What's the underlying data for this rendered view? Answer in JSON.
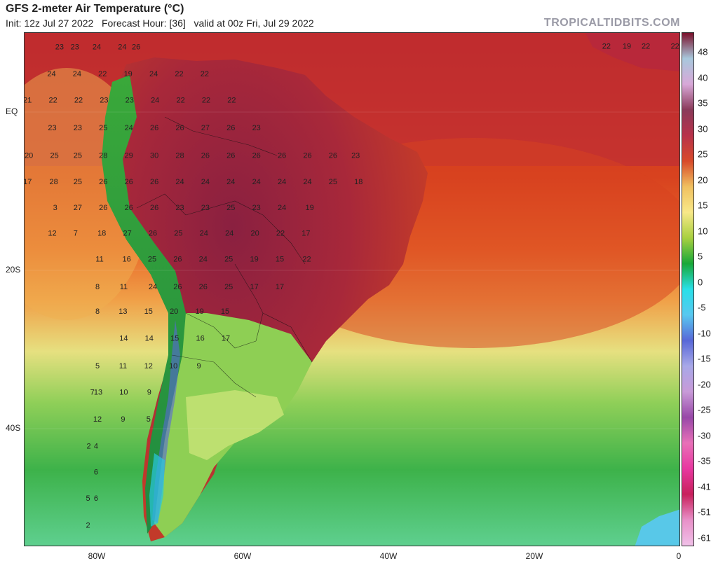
{
  "header": {
    "title": "GFS 2-meter Air Temperature (°C)",
    "subtitle": "Init: 12z Jul 27 2022   Forecast Hour: [36]   valid at 00z Fri, Jul 29 2022",
    "brand": "TROPICALTIDBITS.COM"
  },
  "map": {
    "lat_labels": [
      "EQ",
      "20S",
      "40S"
    ],
    "lon_labels": [
      "80W",
      "60W",
      "40W",
      "20W",
      "0"
    ],
    "temperatures": [
      {
        "t": "23",
        "lon": -85.2,
        "lat": 7.9
      },
      {
        "t": "23",
        "lon": -83.1,
        "lat": 7.9
      },
      {
        "t": "24",
        "lon": -80.1,
        "lat": 7.9
      },
      {
        "t": "24",
        "lon": -76.6,
        "lat": 7.9
      },
      {
        "t": "26",
        "lon": -74.7,
        "lat": 7.9
      },
      {
        "t": "24",
        "lon": -86.3,
        "lat": 4.5
      },
      {
        "t": "24",
        "lon": -82.8,
        "lat": 4.5
      },
      {
        "t": "22",
        "lon": -79.3,
        "lat": 4.5
      },
      {
        "t": "19",
        "lon": -75.8,
        "lat": 4.5
      },
      {
        "t": "24",
        "lon": -72.3,
        "lat": 4.5
      },
      {
        "t": "22",
        "lon": -68.8,
        "lat": 4.5
      },
      {
        "t": "22",
        "lon": -65.3,
        "lat": 4.5
      },
      {
        "t": "21",
        "lon": -89.6,
        "lat": 1.2
      },
      {
        "t": "22",
        "lon": -86.1,
        "lat": 1.2
      },
      {
        "t": "22",
        "lon": -82.6,
        "lat": 1.2
      },
      {
        "t": "23",
        "lon": -79.1,
        "lat": 1.2
      },
      {
        "t": "23",
        "lon": -75.6,
        "lat": 1.2
      },
      {
        "t": "24",
        "lon": -72.1,
        "lat": 1.2
      },
      {
        "t": "22",
        "lon": -68.6,
        "lat": 1.2
      },
      {
        "t": "22",
        "lon": -65.1,
        "lat": 1.2
      },
      {
        "t": "22",
        "lon": -61.6,
        "lat": 1.2
      },
      {
        "t": "23",
        "lon": -86.2,
        "lat": -2.3
      },
      {
        "t": "23",
        "lon": -82.7,
        "lat": -2.3
      },
      {
        "t": "25",
        "lon": -79.2,
        "lat": -2.3
      },
      {
        "t": "24",
        "lon": -75.7,
        "lat": -2.3
      },
      {
        "t": "26",
        "lon": -72.2,
        "lat": -2.3
      },
      {
        "t": "26",
        "lon": -68.7,
        "lat": -2.3
      },
      {
        "t": "27",
        "lon": -65.2,
        "lat": -2.3
      },
      {
        "t": "26",
        "lon": -61.7,
        "lat": -2.3
      },
      {
        "t": "23",
        "lon": -58.2,
        "lat": -2.3
      },
      {
        "t": "20",
        "lon": -89.4,
        "lat": -5.8
      },
      {
        "t": "25",
        "lon": -85.9,
        "lat": -5.8
      },
      {
        "t": "25",
        "lon": -82.7,
        "lat": -5.8
      },
      {
        "t": "28",
        "lon": -79.2,
        "lat": -5.8
      },
      {
        "t": "29",
        "lon": -75.7,
        "lat": -5.8
      },
      {
        "t": "30",
        "lon": -72.2,
        "lat": -5.8
      },
      {
        "t": "28",
        "lon": -68.7,
        "lat": -5.8
      },
      {
        "t": "26",
        "lon": -65.2,
        "lat": -5.8
      },
      {
        "t": "26",
        "lon": -61.7,
        "lat": -5.8
      },
      {
        "t": "26",
        "lon": -58.2,
        "lat": -5.8
      },
      {
        "t": "26",
        "lon": -54.7,
        "lat": -5.8
      },
      {
        "t": "26",
        "lon": -51.2,
        "lat": -5.8
      },
      {
        "t": "26",
        "lon": -47.7,
        "lat": -5.8
      },
      {
        "t": "23",
        "lon": -44.6,
        "lat": -5.8
      },
      {
        "t": "17",
        "lon": -89.6,
        "lat": -9.1
      },
      {
        "t": "28",
        "lon": -86.0,
        "lat": -9.1
      },
      {
        "t": "25",
        "lon": -82.7,
        "lat": -9.1
      },
      {
        "t": "26",
        "lon": -79.2,
        "lat": -9.1
      },
      {
        "t": "26",
        "lon": -75.7,
        "lat": -9.1
      },
      {
        "t": "26",
        "lon": -72.2,
        "lat": -9.1
      },
      {
        "t": "24",
        "lon": -68.7,
        "lat": -9.1
      },
      {
        "t": "24",
        "lon": -65.2,
        "lat": -9.1
      },
      {
        "t": "24",
        "lon": -61.7,
        "lat": -9.1
      },
      {
        "t": "24",
        "lon": -58.2,
        "lat": -9.1
      },
      {
        "t": "24",
        "lon": -54.7,
        "lat": -9.1
      },
      {
        "t": "24",
        "lon": -51.2,
        "lat": -9.1
      },
      {
        "t": "25",
        "lon": -47.7,
        "lat": -9.1
      },
      {
        "t": "18",
        "lon": -44.2,
        "lat": -9.1
      },
      {
        "t": "3",
        "lon": -85.8,
        "lat": -12.4
      },
      {
        "t": "27",
        "lon": -82.7,
        "lat": -12.4
      },
      {
        "t": "26",
        "lon": -79.2,
        "lat": -12.4
      },
      {
        "t": "26",
        "lon": -75.7,
        "lat": -12.4
      },
      {
        "t": "26",
        "lon": -72.2,
        "lat": -12.4
      },
      {
        "t": "23",
        "lon": -68.7,
        "lat": -12.4
      },
      {
        "t": "23",
        "lon": -65.2,
        "lat": -12.4
      },
      {
        "t": "25",
        "lon": -61.7,
        "lat": -12.4
      },
      {
        "t": "23",
        "lon": -58.2,
        "lat": -12.4
      },
      {
        "t": "24",
        "lon": -54.7,
        "lat": -12.4
      },
      {
        "t": "19",
        "lon": -50.9,
        "lat": -12.4
      },
      {
        "t": "12",
        "lon": -86.2,
        "lat": -15.6
      },
      {
        "t": "7",
        "lon": -83.0,
        "lat": -15.6
      },
      {
        "t": "18",
        "lon": -79.4,
        "lat": -15.6
      },
      {
        "t": "27",
        "lon": -75.9,
        "lat": -15.6
      },
      {
        "t": "26",
        "lon": -72.4,
        "lat": -15.6
      },
      {
        "t": "25",
        "lon": -68.9,
        "lat": -15.6
      },
      {
        "t": "24",
        "lon": -65.4,
        "lat": -15.6
      },
      {
        "t": "24",
        "lon": -61.9,
        "lat": -15.6
      },
      {
        "t": "20",
        "lon": -58.4,
        "lat": -15.6
      },
      {
        "t": "22",
        "lon": -54.9,
        "lat": -15.6
      },
      {
        "t": "17",
        "lon": -51.4,
        "lat": -15.6
      },
      {
        "t": "11",
        "lon": -79.7,
        "lat": -18.9
      },
      {
        "t": "16",
        "lon": -76.0,
        "lat": -18.9
      },
      {
        "t": "25",
        "lon": -72.5,
        "lat": -18.9
      },
      {
        "t": "26",
        "lon": -69.0,
        "lat": -18.9
      },
      {
        "t": "24",
        "lon": -65.5,
        "lat": -18.9
      },
      {
        "t": "25",
        "lon": -62.0,
        "lat": -18.9
      },
      {
        "t": "19",
        "lon": -58.5,
        "lat": -18.9
      },
      {
        "t": "15",
        "lon": -55.0,
        "lat": -18.9
      },
      {
        "t": "22",
        "lon": -51.3,
        "lat": -18.9
      },
      {
        "t": "8",
        "lon": -80.0,
        "lat": -22.4
      },
      {
        "t": "11",
        "lon": -76.4,
        "lat": -22.4
      },
      {
        "t": "24",
        "lon": -72.4,
        "lat": -22.4
      },
      {
        "t": "26",
        "lon": -69.0,
        "lat": -22.4
      },
      {
        "t": "26",
        "lon": -65.5,
        "lat": -22.4
      },
      {
        "t": "25",
        "lon": -62.0,
        "lat": -22.4
      },
      {
        "t": "17",
        "lon": -58.5,
        "lat": -22.4
      },
      {
        "t": "17",
        "lon": -55.0,
        "lat": -22.4
      },
      {
        "t": "8",
        "lon": -80.0,
        "lat": -25.5
      },
      {
        "t": "13",
        "lon": -76.5,
        "lat": -25.5
      },
      {
        "t": "15",
        "lon": -73.0,
        "lat": -25.5
      },
      {
        "t": "20",
        "lon": -69.5,
        "lat": -25.5
      },
      {
        "t": "19",
        "lon": -66.0,
        "lat": -25.5
      },
      {
        "t": "15",
        "lon": -62.5,
        "lat": -25.5
      },
      {
        "t": "14",
        "lon": -76.4,
        "lat": -28.9
      },
      {
        "t": "14",
        "lon": -72.9,
        "lat": -28.9
      },
      {
        "t": "15",
        "lon": -69.4,
        "lat": -28.9
      },
      {
        "t": "16",
        "lon": -65.9,
        "lat": -28.9
      },
      {
        "t": "17",
        "lon": -62.4,
        "lat": -28.9
      },
      {
        "t": "5",
        "lon": -80.0,
        "lat": -32.4
      },
      {
        "t": "11",
        "lon": -76.5,
        "lat": -32.4
      },
      {
        "t": "12",
        "lon": -73.0,
        "lat": -32.4
      },
      {
        "t": "10",
        "lon": -69.6,
        "lat": -32.4
      },
      {
        "t": "9",
        "lon": -66.1,
        "lat": -32.4
      },
      {
        "t": "7",
        "lon": -80.7,
        "lat": -35.7
      },
      {
        "t": "13",
        "lon": -79.9,
        "lat": -35.7
      },
      {
        "t": "10",
        "lon": -76.4,
        "lat": -35.7
      },
      {
        "t": "9",
        "lon": -72.9,
        "lat": -35.7
      },
      {
        "t": "12",
        "lon": -80.0,
        "lat": -39.1
      },
      {
        "t": "9",
        "lon": -76.5,
        "lat": -39.1
      },
      {
        "t": "5",
        "lon": -73.0,
        "lat": -39.1
      },
      {
        "t": "2",
        "lon": -81.2,
        "lat": -42.5
      },
      {
        "t": "4",
        "lon": -80.2,
        "lat": -42.5
      },
      {
        "t": "6",
        "lon": -80.2,
        "lat": -45.8
      },
      {
        "t": "5",
        "lon": -81.3,
        "lat": -49.1
      },
      {
        "t": "6",
        "lon": -80.2,
        "lat": -49.1
      },
      {
        "t": "2",
        "lon": -81.3,
        "lat": -52.5
      },
      {
        "t": "22",
        "lon": -10.2,
        "lat": 8.0
      },
      {
        "t": "19",
        "lon": -7.4,
        "lat": 8.0
      },
      {
        "t": "22",
        "lon": -4.8,
        "lat": 8.0
      },
      {
        "t": "22",
        "lon": -0.8,
        "lat": 8.0
      }
    ]
  },
  "colorbar": {
    "ticks": [
      "48",
      "40",
      "35",
      "30",
      "25",
      "20",
      "15",
      "10",
      "5",
      "0",
      "-5",
      "-10",
      "-15",
      "-20",
      "-25",
      "-30",
      "-35",
      "-41",
      "-51",
      "-61"
    ],
    "colors": [
      "#7a0f2a",
      "#a8c8dc",
      "#d8a8d8",
      "#8a3a5a",
      "#b8324a",
      "#d84a2a",
      "#f0c060",
      "#f8e888",
      "#a8d040",
      "#18a838",
      "#28e0e8",
      "#58c8f0",
      "#5868d8",
      "#a8a8e8",
      "#c89ad8",
      "#9848a8",
      "#e870b8",
      "#e838a0",
      "#c8205c",
      "#e890c8",
      "#f0c0e8"
    ]
  }
}
